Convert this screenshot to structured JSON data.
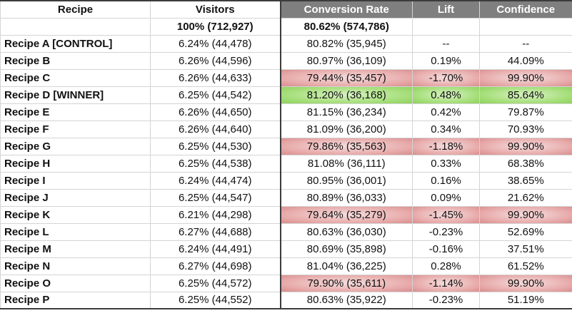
{
  "headers": {
    "recipe": "Recipe",
    "visitors": "Visitors",
    "conversion_rate": "Conversion Rate",
    "lift": "Lift",
    "confidence": "Confidence"
  },
  "totals": {
    "recipe": "",
    "visitors": "100% (712,927)",
    "conversion_rate": "80.62% (574,786)",
    "lift": "",
    "confidence": ""
  },
  "rows": [
    {
      "recipe": "Recipe A [CONTROL]",
      "visitors": "6.24% (44,478)",
      "conversion_rate": "80.82% (35,945)",
      "lift": "--",
      "confidence": "--",
      "highlight": ""
    },
    {
      "recipe": "Recipe B",
      "visitors": "6.26% (44,596)",
      "conversion_rate": "80.97% (36,109)",
      "lift": "0.19%",
      "confidence": "44.09%",
      "highlight": ""
    },
    {
      "recipe": "Recipe C",
      "visitors": "6.26% (44,633)",
      "conversion_rate": "79.44% (35,457)",
      "lift": "-1.70%",
      "confidence": "99.90%",
      "highlight": "red"
    },
    {
      "recipe": "Recipe D [WINNER]",
      "visitors": "6.25% (44,542)",
      "conversion_rate": "81.20% (36,168)",
      "lift": "0.48%",
      "confidence": "85.64%",
      "highlight": "green"
    },
    {
      "recipe": "Recipe E",
      "visitors": "6.26% (44,650)",
      "conversion_rate": "81.15% (36,234)",
      "lift": "0.42%",
      "confidence": "79.87%",
      "highlight": ""
    },
    {
      "recipe": "Recipe F",
      "visitors": "6.26% (44,640)",
      "conversion_rate": "81.09% (36,200)",
      "lift": "0.34%",
      "confidence": "70.93%",
      "highlight": ""
    },
    {
      "recipe": "Recipe G",
      "visitors": "6.25% (44,530)",
      "conversion_rate": "79.86% (35,563)",
      "lift": "-1.18%",
      "confidence": "99.90%",
      "highlight": "red"
    },
    {
      "recipe": "Recipe H",
      "visitors": "6.25% (44,538)",
      "conversion_rate": "81.08% (36,111)",
      "lift": "0.33%",
      "confidence": "68.38%",
      "highlight": ""
    },
    {
      "recipe": "Recipe I",
      "visitors": "6.24% (44,474)",
      "conversion_rate": "80.95% (36,001)",
      "lift": "0.16%",
      "confidence": "38.65%",
      "highlight": ""
    },
    {
      "recipe": "Recipe J",
      "visitors": "6.25% (44,547)",
      "conversion_rate": "80.89% (36,033)",
      "lift": "0.09%",
      "confidence": "21.62%",
      "highlight": ""
    },
    {
      "recipe": "Recipe K",
      "visitors": "6.21% (44,298)",
      "conversion_rate": "79.64% (35,279)",
      "lift": "-1.45%",
      "confidence": "99.90%",
      "highlight": "red"
    },
    {
      "recipe": "Recipe L",
      "visitors": "6.27% (44,688)",
      "conversion_rate": "80.63% (36,030)",
      "lift": "-0.23%",
      "confidence": "52.69%",
      "highlight": ""
    },
    {
      "recipe": "Recipe M",
      "visitors": "6.24% (44,491)",
      "conversion_rate": "80.69% (35,898)",
      "lift": "-0.16%",
      "confidence": "37.51%",
      "highlight": ""
    },
    {
      "recipe": "Recipe N",
      "visitors": "6.27% (44,698)",
      "conversion_rate": "81.04% (36,225)",
      "lift": "0.28%",
      "confidence": "61.52%",
      "highlight": ""
    },
    {
      "recipe": "Recipe O",
      "visitors": "6.25% (44,572)",
      "conversion_rate": "79.90% (35,611)",
      "lift": "-1.14%",
      "confidence": "99.90%",
      "highlight": "red"
    },
    {
      "recipe": "Recipe P",
      "visitors": "6.25% (44,552)",
      "conversion_rate": "80.63% (35,922)",
      "lift": "-0.23%",
      "confidence": "51.19%",
      "highlight": ""
    }
  ],
  "colors": {
    "header_dark": "#7f7f7f",
    "loser_highlight": "#e7a9a9",
    "winner_highlight": "#a7df7c"
  }
}
